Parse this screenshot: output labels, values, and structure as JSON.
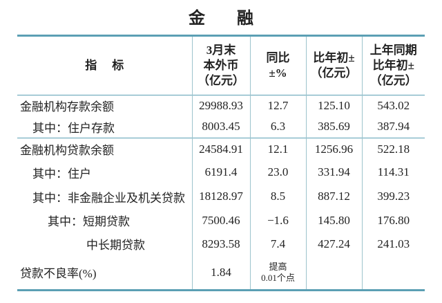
{
  "title": "金融",
  "table": {
    "header": [
      [
        "指标"
      ],
      [
        "3月末",
        "本外币",
        "（亿元）"
      ],
      [
        "同比",
        "±%"
      ],
      [
        "比年初±",
        "（亿元）"
      ],
      [
        "上年同期",
        "比年初±",
        "（亿元）"
      ]
    ],
    "rows": [
      [
        "金融机构存款余额",
        "29988.93",
        "12.7",
        "125.10",
        "543.02"
      ],
      [
        "其中：住户存款",
        "8003.45",
        "6.3",
        "385.69",
        "387.94"
      ],
      [
        "金融机构贷款余额",
        "24584.91",
        "12.1",
        "1256.96",
        "522.18"
      ],
      [
        "其中：住户",
        "6191.4",
        "23.0",
        "331.94",
        "114.31"
      ],
      [
        "其中：非金融企业及机关贷款",
        "18128.97",
        "8.5",
        "887.12",
        "399.23"
      ],
      [
        "其中：短期贷款",
        "7500.46",
        "−1.6",
        "145.80",
        "176.80"
      ],
      [
        "中长期贷款",
        "8293.58",
        "7.4",
        "427.24",
        "241.03"
      ],
      [
        "贷款不良率(%)",
        "1.84",
        [
          "提高",
          "0.01个点"
        ]
      ]
    ]
  }
}
